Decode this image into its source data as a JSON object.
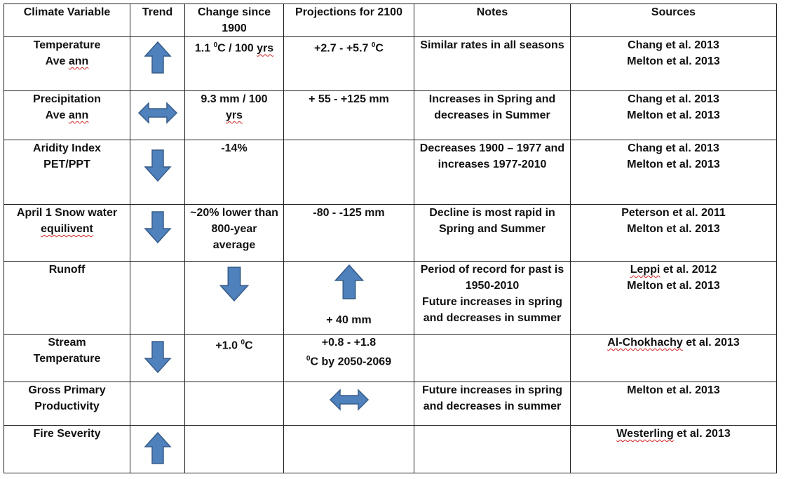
{
  "headers": {
    "variable": "Climate Variable",
    "trend": "Trend",
    "change": "Change since 1900",
    "projection": "Projections for 2100",
    "notes": "Notes",
    "sources": "Sources"
  },
  "rows": [
    {
      "var1": "Temperature",
      "var2a": "Ave ",
      "var2b": "ann",
      "trend": "up",
      "change_a": "1.1 ",
      "change_sup": "0",
      "change_b": "C / 100 ",
      "change_c": "yrs",
      "proj_a": "+2.7 - +5.7 ",
      "proj_sup": "0",
      "proj_b": "C",
      "notes": "Similar rates in all seasons",
      "src1": "Chang et al. 2013",
      "src2": "Melton et al. 2013"
    },
    {
      "var1": "Precipitation",
      "var2a": "Ave ",
      "var2b": "ann",
      "trend": "both",
      "change_a": "9.3 mm / 100",
      "change_b": "yrs",
      "proj": "+ 55 - +125 mm",
      "notes": "Increases in Spring and decreases in Summer",
      "src1": "Chang et al. 2013",
      "src2": "Melton et al. 2013"
    },
    {
      "var1": "Aridity Index",
      "var2": "PET/PPT",
      "trend": "down",
      "change": "-14%",
      "proj": "",
      "notes": "Decreases 1900 – 1977 and increases 1977-2010",
      "src1": "Chang et al. 2013",
      "src2": "Melton et al. 2013"
    },
    {
      "var1": "April 1 Snow water",
      "var2": "equilivent",
      "trend": "down",
      "change": "~20% lower than 800-year average",
      "proj": "-80 - -125 mm",
      "notes": "Decline is most rapid in Spring and Summer",
      "src1": "Peterson et al.  2011",
      "src2": "Melton et al. 2013"
    },
    {
      "var1": "Runoff",
      "trend": "",
      "change_arrow": "down",
      "proj_arrow": "up",
      "proj": "+ 40 mm",
      "notes1": "Period of record for past is 1950-2010",
      "notes2": "Future increases in spring and decreases in summer",
      "src1a": "Leppi",
      "src1b": " et al. 2012",
      "src2": "Melton et al. 2013"
    },
    {
      "var1": "Stream",
      "var2": "Temperature",
      "trend": "down",
      "change_a": "+1.0 ",
      "change_sup": "0",
      "change_b": "C",
      "proj_a": "+0.8 - +1.8",
      "proj_sup": "0",
      "proj_b": "C by 2050-2069",
      "notes": "",
      "src1a": "Al-Chokhachy",
      "src1b": " et al. 2013"
    },
    {
      "var1": "Gross Primary",
      "var2": "Productivity",
      "trend": "",
      "change": "",
      "proj_arrow": "both",
      "notes": "Future increases in spring and decreases in summer",
      "src1": "Melton et al. 2013"
    },
    {
      "var1": "Fire Severity",
      "trend": "up",
      "change": "",
      "proj": "",
      "notes": "",
      "src1a": "Westerling",
      "src1b": " et al. 2013"
    }
  ],
  "colors": {
    "arrow_fill": "#4f81bd",
    "arrow_stroke": "#385d8a",
    "spell_underline": "#d02020"
  }
}
